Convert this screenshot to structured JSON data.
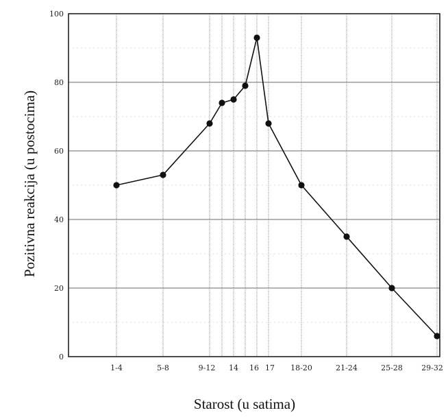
{
  "chart_data": {
    "type": "line",
    "xlabel": "Starost (u satima)",
    "ylabel": "Pozitivna reakcija (u postocima)",
    "ylim": [
      0,
      100
    ],
    "yticks": [
      "0",
      "20",
      "40",
      "60",
      "80",
      "100"
    ],
    "xtick_labels": [
      "1-4",
      "5-8",
      "9-12",
      "14",
      "16",
      "17",
      "18-20",
      "21-24",
      "25-28",
      "29-32"
    ],
    "grid": true,
    "colors": {
      "line": "#111111",
      "grid": "#888888",
      "frame": "#222222"
    },
    "points": [
      {
        "x": "1-4",
        "y": 50
      },
      {
        "x": "5-8",
        "y": 53
      },
      {
        "x": "9-12",
        "y": 68
      },
      {
        "x": "13",
        "y": 74
      },
      {
        "x": "14",
        "y": 75
      },
      {
        "x": "15",
        "y": 79
      },
      {
        "x": "16",
        "y": 93
      },
      {
        "x": "17",
        "y": 68
      },
      {
        "x": "18-20",
        "y": 50
      },
      {
        "x": "21-24",
        "y": 35
      },
      {
        "x": "25-28",
        "y": 20
      },
      {
        "x": "29-32",
        "y": 6
      }
    ]
  }
}
